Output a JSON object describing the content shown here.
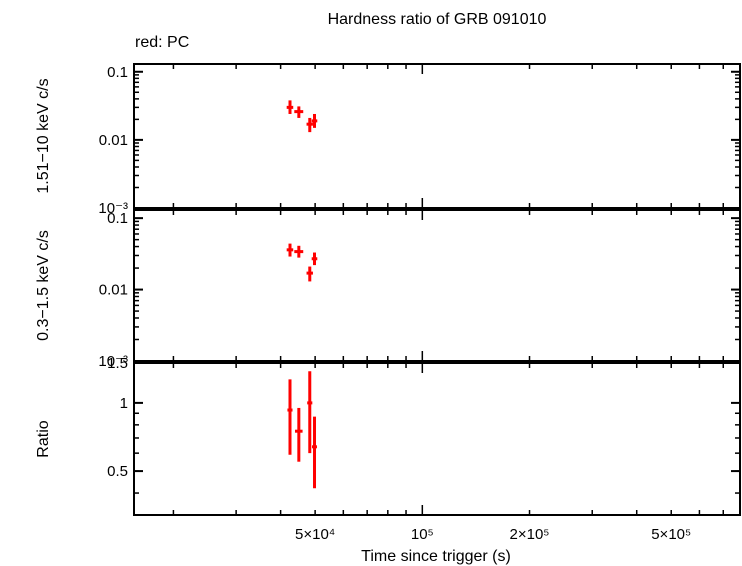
{
  "title": "Hardness ratio of GRB 091010",
  "legend_note": "red: PC",
  "xlabel": "Time since trigger (s)",
  "colors": {
    "data": "#ff0000",
    "axes": "#000000"
  },
  "chart_data": [
    {
      "type": "scatter",
      "panel": "hard",
      "ylabel": "1.51−10 keV c/s",
      "yscale": "log",
      "ylim": [
        0.001,
        0.13
      ],
      "xscale": "log",
      "xlim": [
        15500,
        780000
      ],
      "yticks": [
        {
          "v": 0.1,
          "label": "0.1"
        },
        {
          "v": 0.01,
          "label": "0.01"
        },
        {
          "v": 0.001,
          "label": "10⁻³"
        }
      ],
      "series": [
        {
          "points": [
            {
              "x": 42500,
              "xlo": 41600,
              "xhi": 43400,
              "y": 0.03,
              "ylo": 0.024,
              "yhi": 0.038
            },
            {
              "x": 45000,
              "xlo": 43700,
              "xhi": 46300,
              "y": 0.026,
              "ylo": 0.021,
              "yhi": 0.031
            },
            {
              "x": 48300,
              "xlo": 47300,
              "xhi": 49300,
              "y": 0.017,
              "ylo": 0.013,
              "yhi": 0.021
            },
            {
              "x": 49800,
              "xlo": 48900,
              "xhi": 50700,
              "y": 0.019,
              "ylo": 0.015,
              "yhi": 0.024
            }
          ]
        }
      ]
    },
    {
      "type": "scatter",
      "panel": "soft",
      "ylabel": "0.3−1.5 keV c/s",
      "yscale": "log",
      "ylim": [
        0.001,
        0.13
      ],
      "xscale": "log",
      "xlim": [
        15500,
        780000
      ],
      "yticks": [
        {
          "v": 0.1,
          "label": "0.1"
        },
        {
          "v": 0.01,
          "label": "0.01"
        },
        {
          "v": 0.001,
          "label": "10⁻³"
        }
      ],
      "series": [
        {
          "points": [
            {
              "x": 42500,
              "xlo": 41600,
              "xhi": 43400,
              "y": 0.036,
              "ylo": 0.029,
              "yhi": 0.044
            },
            {
              "x": 45000,
              "xlo": 43700,
              "xhi": 46300,
              "y": 0.034,
              "ylo": 0.028,
              "yhi": 0.041
            },
            {
              "x": 48300,
              "xlo": 47300,
              "xhi": 49300,
              "y": 0.017,
              "ylo": 0.013,
              "yhi": 0.021
            },
            {
              "x": 49800,
              "xlo": 48900,
              "xhi": 50700,
              "y": 0.027,
              "ylo": 0.022,
              "yhi": 0.033
            }
          ]
        }
      ]
    },
    {
      "type": "scatter",
      "panel": "ratio",
      "ylabel": "Ratio",
      "yscale": "log",
      "ylim": [
        0.32,
        1.5
      ],
      "xscale": "log",
      "xlim": [
        15500,
        780000
      ],
      "yticks": [
        {
          "v": 1.5,
          "label": "1.5"
        },
        {
          "v": 1.0,
          "label": "1"
        },
        {
          "v": 0.5,
          "label": "0.5"
        }
      ],
      "series": [
        {
          "points": [
            {
              "x": 42500,
              "xlo": 41800,
              "xhi": 43200,
              "y": 0.93,
              "ylo": 0.59,
              "yhi": 1.27
            },
            {
              "x": 45000,
              "xlo": 43900,
              "xhi": 46100,
              "y": 0.75,
              "ylo": 0.55,
              "yhi": 0.95
            },
            {
              "x": 48300,
              "xlo": 47500,
              "xhi": 49100,
              "y": 1.0,
              "ylo": 0.6,
              "yhi": 1.38
            },
            {
              "x": 49800,
              "xlo": 49000,
              "xhi": 50600,
              "y": 0.64,
              "ylo": 0.42,
              "yhi": 0.87
            }
          ]
        }
      ]
    }
  ],
  "xticks": [
    {
      "v": 50000,
      "label": "5×10⁴"
    },
    {
      "v": 100000,
      "label": "10⁵"
    },
    {
      "v": 200000,
      "label": "2×10⁵"
    },
    {
      "v": 500000,
      "label": "5×10⁵"
    }
  ]
}
